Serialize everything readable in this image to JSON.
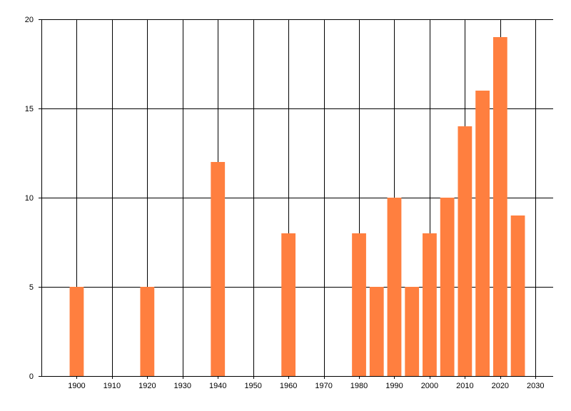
{
  "chart_data": {
    "type": "bar",
    "x": [
      1900,
      1920,
      1940,
      1960,
      1980,
      1985,
      1990,
      1995,
      2000,
      2005,
      2010,
      2015,
      2020,
      2025
    ],
    "values": [
      5,
      5,
      12,
      8,
      8,
      5,
      10,
      5,
      8,
      10,
      14,
      16,
      19,
      9
    ],
    "title": "",
    "xlabel": "",
    "ylabel": "",
    "xlim": [
      1890,
      2035
    ],
    "ylim": [
      0,
      20
    ],
    "x_ticks": [
      1900,
      1910,
      1920,
      1930,
      1940,
      1950,
      1960,
      1970,
      1980,
      1990,
      2000,
      2010,
      2020,
      2030
    ],
    "y_ticks": [
      0,
      5,
      10,
      15,
      20
    ],
    "bar_width_years": 4,
    "grid": true,
    "legend": "none",
    "bar_color": "#ff7f3f",
    "grid_color": "#000000",
    "background_color": "#ffffff"
  }
}
